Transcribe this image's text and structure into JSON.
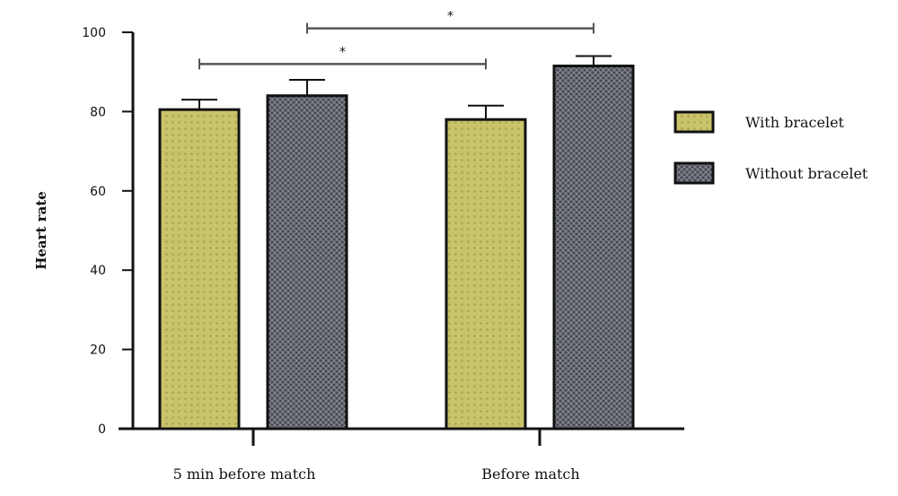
{
  "chart_data": {
    "type": "bar",
    "title": "",
    "xlabel": "",
    "ylabel": "Heart rate",
    "ylim": [
      0,
      100
    ],
    "yticks": [
      "0",
      "20",
      "40",
      "60",
      "80",
      "100"
    ],
    "categories": [
      "5 min before match",
      "Before match"
    ],
    "series": [
      {
        "name": "With bracelet",
        "values": [
          80.5,
          78
        ],
        "errors": [
          2.5,
          3.5
        ],
        "color": "#c9c46a",
        "pattern": "dots"
      },
      {
        "name": "Without bracelet",
        "values": [
          84,
          91.5
        ],
        "errors": [
          4,
          2.5
        ],
        "color": "#4a4c55",
        "pattern": "crosshatch"
      }
    ],
    "legend_position": "right",
    "grid": false,
    "significance": [
      {
        "label": "*",
        "from": [
          0,
          0
        ],
        "to": [
          1,
          0
        ],
        "level": 92
      },
      {
        "label": "*",
        "from": [
          0,
          1
        ],
        "to": [
          1,
          1
        ],
        "level": 101
      }
    ]
  }
}
